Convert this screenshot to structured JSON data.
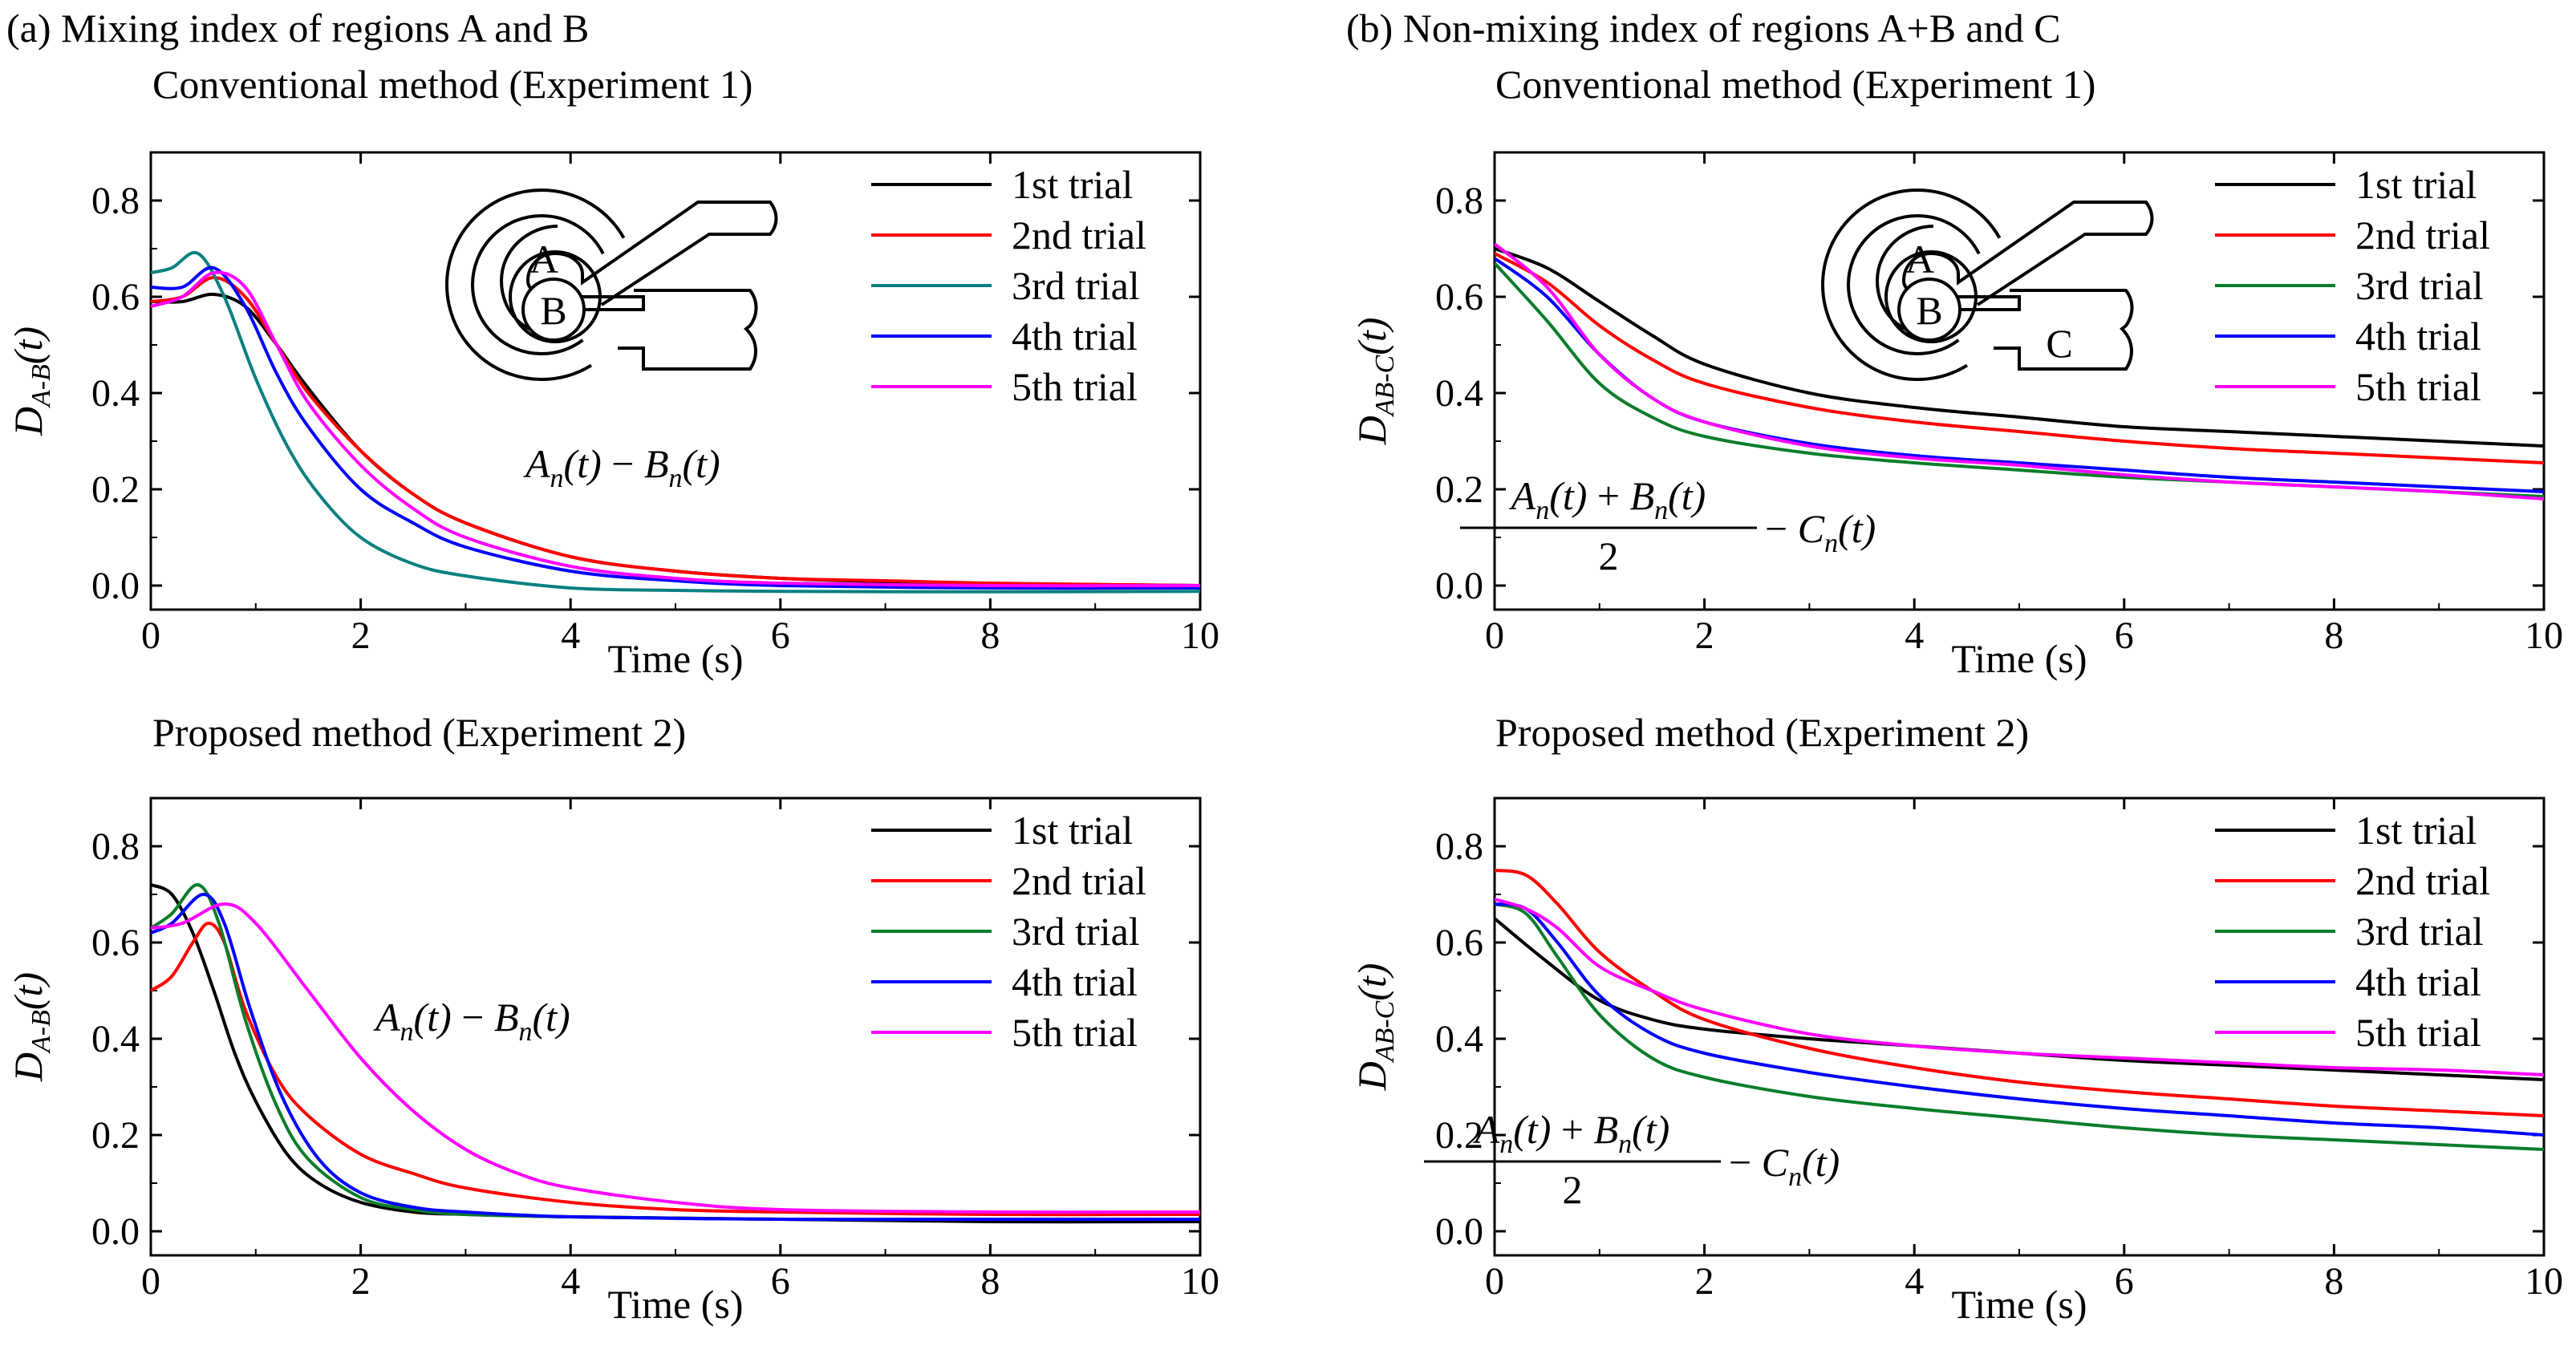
{
  "figure": {
    "panel_a_title": "(a) Mixing index of regions A and B",
    "panel_b_title": "(b) Non-mixing index of regions A+B and C"
  },
  "colors": {
    "1st trial": "#000000",
    "2nd trial": "#ff0000",
    "3rd trial_exp1": "#0a8080",
    "3rd trial": "#0b7d2b",
    "4th trial": "#0000ff",
    "5th trial": "#ff00ff"
  },
  "inset": {
    "label_a": "A",
    "label_b": "B",
    "label_c": "C"
  },
  "chart_data": [
    {
      "id": "a1",
      "type": "line",
      "title": "Conventional method (Experiment 1)",
      "xlabel": "Time (s)",
      "ylabel": {
        "main": "D",
        "sub": "A-B",
        "arg": "(t)"
      },
      "xlim": [
        0,
        10
      ],
      "ylim": [
        -0.05,
        0.9
      ],
      "xticks": [
        "0",
        "2",
        "4",
        "6",
        "8",
        "10"
      ],
      "yticks": [
        "0.0",
        "0.2",
        "0.4",
        "0.6",
        "0.8"
      ],
      "formula": {
        "a": "A",
        "sub_n": "n",
        "t": "(t)",
        "op": " − ",
        "b": "B"
      },
      "legend": [
        "1st trial",
        "2nd trial",
        "3rd trial",
        "4th trial",
        "5th trial"
      ],
      "series": [
        {
          "name": "1st trial",
          "x": [
            0,
            0.3,
            0.6,
            0.9,
            1.2,
            1.5,
            2,
            2.5,
            3,
            4,
            5,
            6,
            7,
            8,
            10
          ],
          "values": [
            0.59,
            0.59,
            0.605,
            0.58,
            0.5,
            0.41,
            0.28,
            0.19,
            0.13,
            0.06,
            0.03,
            0.015,
            0.008,
            0.004,
            0.0
          ]
        },
        {
          "name": "2nd trial",
          "x": [
            0,
            0.3,
            0.6,
            0.9,
            1.2,
            1.5,
            2,
            2.5,
            3,
            4,
            5,
            6,
            7,
            8,
            10
          ],
          "values": [
            0.59,
            0.6,
            0.64,
            0.6,
            0.5,
            0.4,
            0.28,
            0.19,
            0.13,
            0.06,
            0.03,
            0.015,
            0.01,
            0.005,
            0.0
          ]
        },
        {
          "name": "3rd trial",
          "color_key": "3rd trial_exp1",
          "x": [
            0,
            0.2,
            0.45,
            0.7,
            1.0,
            1.3,
            1.6,
            2,
            2.5,
            3,
            4,
            5,
            6,
            8,
            10
          ],
          "values": [
            0.65,
            0.66,
            0.69,
            0.6,
            0.43,
            0.29,
            0.19,
            0.1,
            0.045,
            0.02,
            -0.005,
            -0.01,
            -0.012,
            -0.013,
            -0.012
          ]
        },
        {
          "name": "4th trial",
          "x": [
            0,
            0.3,
            0.6,
            0.9,
            1.2,
            1.5,
            2,
            2.5,
            3,
            4,
            5,
            6,
            8,
            10
          ],
          "values": [
            0.62,
            0.62,
            0.66,
            0.58,
            0.44,
            0.33,
            0.2,
            0.13,
            0.08,
            0.03,
            0.01,
            0.0,
            -0.005,
            -0.005
          ]
        },
        {
          "name": "5th trial",
          "x": [
            0,
            0.3,
            0.6,
            0.9,
            1.2,
            1.5,
            2,
            2.5,
            3,
            4,
            5,
            6,
            8,
            10
          ],
          "values": [
            0.58,
            0.6,
            0.65,
            0.62,
            0.5,
            0.38,
            0.25,
            0.16,
            0.1,
            0.04,
            0.015,
            0.005,
            0.0,
            0.0
          ]
        }
      ]
    },
    {
      "id": "b1",
      "type": "line",
      "title": "Conventional method (Experiment 1)",
      "xlabel": "Time (s)",
      "ylabel": {
        "main": "D",
        "sub": "AB-C",
        "arg": "(t)"
      },
      "xlim": [
        0,
        10
      ],
      "ylim": [
        -0.05,
        0.9
      ],
      "xticks": [
        "0",
        "2",
        "4",
        "6",
        "8",
        "10"
      ],
      "yticks": [
        "0.0",
        "0.2",
        "0.4",
        "0.6",
        "0.8"
      ],
      "formula": {
        "a": "A",
        "sub_n": "n",
        "t": "(t)",
        "plus": " + ",
        "b": "B",
        "den": "2",
        "minus": " − ",
        "c": "C"
      },
      "legend": [
        "1st trial",
        "2nd trial",
        "3rd trial",
        "4th trial",
        "5th trial"
      ],
      "series": [
        {
          "name": "1st trial",
          "x": [
            0,
            0.5,
            1,
            1.5,
            2,
            3,
            4,
            5,
            6,
            7,
            8,
            9,
            10
          ],
          "values": [
            0.7,
            0.66,
            0.59,
            0.52,
            0.46,
            0.4,
            0.37,
            0.35,
            0.33,
            0.32,
            0.31,
            0.3,
            0.29
          ]
        },
        {
          "name": "2nd trial",
          "x": [
            0,
            0.5,
            1,
            1.5,
            2,
            3,
            4,
            5,
            6,
            7,
            8,
            9,
            10
          ],
          "values": [
            0.69,
            0.63,
            0.54,
            0.47,
            0.42,
            0.37,
            0.34,
            0.32,
            0.3,
            0.285,
            0.275,
            0.265,
            0.255
          ]
        },
        {
          "name": "3rd trial",
          "x": [
            0,
            0.5,
            1,
            1.5,
            2,
            3,
            4,
            5,
            6,
            7,
            8,
            9,
            10
          ],
          "values": [
            0.67,
            0.55,
            0.42,
            0.35,
            0.31,
            0.275,
            0.255,
            0.24,
            0.225,
            0.215,
            0.205,
            0.195,
            0.185
          ]
        },
        {
          "name": "4th trial",
          "x": [
            0,
            0.5,
            1,
            1.5,
            2,
            3,
            4,
            5,
            6,
            7,
            8,
            9,
            10
          ],
          "values": [
            0.68,
            0.6,
            0.48,
            0.39,
            0.34,
            0.295,
            0.27,
            0.255,
            0.24,
            0.225,
            0.215,
            0.205,
            0.195
          ]
        },
        {
          "name": "5th trial",
          "x": [
            0,
            0.5,
            1,
            1.5,
            2,
            3,
            4,
            5,
            6,
            7,
            8,
            9,
            10
          ],
          "values": [
            0.71,
            0.62,
            0.48,
            0.39,
            0.34,
            0.29,
            0.265,
            0.25,
            0.23,
            0.215,
            0.205,
            0.195,
            0.18
          ]
        }
      ]
    },
    {
      "id": "a2",
      "type": "line",
      "title": "Proposed method (Experiment 2)",
      "xlabel": "Time (s)",
      "ylabel": {
        "main": "D",
        "sub": "A-B",
        "arg": "(t)"
      },
      "xlim": [
        0,
        10
      ],
      "ylim": [
        -0.05,
        0.9
      ],
      "xticks": [
        "0",
        "2",
        "4",
        "6",
        "8",
        "10"
      ],
      "yticks": [
        "0.0",
        "0.2",
        "0.4",
        "0.6",
        "0.8"
      ],
      "formula": {
        "a": "A",
        "sub_n": "n",
        "t": "(t)",
        "op": " − ",
        "b": "B"
      },
      "legend": [
        "1st trial",
        "2nd trial",
        "3rd trial",
        "4th trial",
        "5th trial"
      ],
      "series": [
        {
          "name": "1st trial",
          "x": [
            0,
            0.2,
            0.4,
            0.6,
            0.8,
            1.0,
            1.3,
            1.6,
            2,
            2.5,
            3,
            4,
            6,
            8,
            10
          ],
          "values": [
            0.72,
            0.7,
            0.62,
            0.5,
            0.37,
            0.27,
            0.16,
            0.1,
            0.06,
            0.04,
            0.035,
            0.03,
            0.025,
            0.02,
            0.02
          ]
        },
        {
          "name": "2nd trial",
          "x": [
            0,
            0.2,
            0.4,
            0.55,
            0.7,
            0.9,
            1.2,
            1.5,
            2,
            2.5,
            3,
            4,
            5,
            6,
            8,
            10
          ],
          "values": [
            0.5,
            0.53,
            0.6,
            0.64,
            0.6,
            0.46,
            0.32,
            0.24,
            0.16,
            0.12,
            0.09,
            0.06,
            0.045,
            0.04,
            0.035,
            0.035
          ]
        },
        {
          "name": "3rd trial",
          "x": [
            0,
            0.2,
            0.45,
            0.65,
            0.9,
            1.2,
            1.5,
            2,
            2.5,
            3,
            4,
            6,
            8,
            10
          ],
          "values": [
            0.63,
            0.66,
            0.72,
            0.64,
            0.44,
            0.26,
            0.15,
            0.07,
            0.045,
            0.035,
            0.03,
            0.025,
            0.025,
            0.025
          ]
        },
        {
          "name": "4th trial",
          "x": [
            0,
            0.2,
            0.5,
            0.7,
            0.95,
            1.25,
            1.6,
            2,
            2.5,
            3,
            4,
            6,
            8,
            10
          ],
          "values": [
            0.62,
            0.64,
            0.7,
            0.64,
            0.46,
            0.28,
            0.15,
            0.08,
            0.05,
            0.04,
            0.03,
            0.025,
            0.025,
            0.025
          ]
        },
        {
          "name": "5th trial",
          "x": [
            0,
            0.3,
            0.7,
            1.0,
            1.5,
            2,
            2.5,
            3,
            3.5,
            4,
            5,
            6,
            8,
            10
          ],
          "values": [
            0.63,
            0.64,
            0.68,
            0.64,
            0.5,
            0.36,
            0.25,
            0.17,
            0.12,
            0.09,
            0.06,
            0.045,
            0.04,
            0.04
          ]
        }
      ]
    },
    {
      "id": "b2",
      "type": "line",
      "title": "Proposed method (Experiment 2)",
      "xlabel": "Time (s)",
      "ylabel": {
        "main": "D",
        "sub": "AB-C",
        "arg": "(t)"
      },
      "xlim": [
        0,
        10
      ],
      "ylim": [
        -0.05,
        0.9
      ],
      "xticks": [
        "0",
        "2",
        "4",
        "6",
        "8",
        "10"
      ],
      "yticks": [
        "0.0",
        "0.2",
        "0.4",
        "0.6",
        "0.8"
      ],
      "formula": {
        "a": "A",
        "sub_n": "n",
        "t": "(t)",
        "plus": " + ",
        "b": "B",
        "den": "2",
        "minus": " − ",
        "c": "C"
      },
      "legend": [
        "1st trial",
        "2nd trial",
        "3rd trial",
        "4th trial",
        "5th trial"
      ],
      "series": [
        {
          "name": "1st trial",
          "x": [
            0,
            0.5,
            1,
            1.5,
            2,
            3,
            4,
            5,
            6,
            7,
            8,
            9,
            10
          ],
          "values": [
            0.65,
            0.56,
            0.48,
            0.44,
            0.42,
            0.4,
            0.385,
            0.37,
            0.355,
            0.345,
            0.335,
            0.325,
            0.315
          ]
        },
        {
          "name": "2nd trial",
          "x": [
            0,
            0.3,
            0.6,
            1,
            1.5,
            2,
            3,
            4,
            5,
            6,
            7,
            8,
            9,
            10
          ],
          "values": [
            0.75,
            0.74,
            0.68,
            0.58,
            0.5,
            0.44,
            0.38,
            0.34,
            0.31,
            0.29,
            0.275,
            0.26,
            0.25,
            0.24
          ]
        },
        {
          "name": "3rd trial",
          "x": [
            0,
            0.3,
            0.6,
            1,
            1.5,
            2,
            3,
            4,
            5,
            6,
            7,
            8,
            9,
            10
          ],
          "values": [
            0.68,
            0.66,
            0.57,
            0.45,
            0.36,
            0.32,
            0.28,
            0.255,
            0.235,
            0.215,
            0.2,
            0.19,
            0.18,
            0.17
          ]
        },
        {
          "name": "4th trial",
          "x": [
            0,
            0.3,
            0.6,
            1,
            1.5,
            2,
            3,
            4,
            5,
            6,
            7,
            8,
            9,
            10
          ],
          "values": [
            0.68,
            0.67,
            0.6,
            0.49,
            0.41,
            0.37,
            0.33,
            0.3,
            0.275,
            0.255,
            0.24,
            0.225,
            0.215,
            0.2
          ]
        },
        {
          "name": "5th trial",
          "x": [
            0,
            0.3,
            0.6,
            1,
            1.5,
            2,
            3,
            4,
            5,
            6,
            7,
            8,
            9,
            10
          ],
          "values": [
            0.69,
            0.67,
            0.63,
            0.55,
            0.5,
            0.46,
            0.41,
            0.385,
            0.37,
            0.36,
            0.35,
            0.34,
            0.335,
            0.325
          ]
        }
      ]
    }
  ]
}
